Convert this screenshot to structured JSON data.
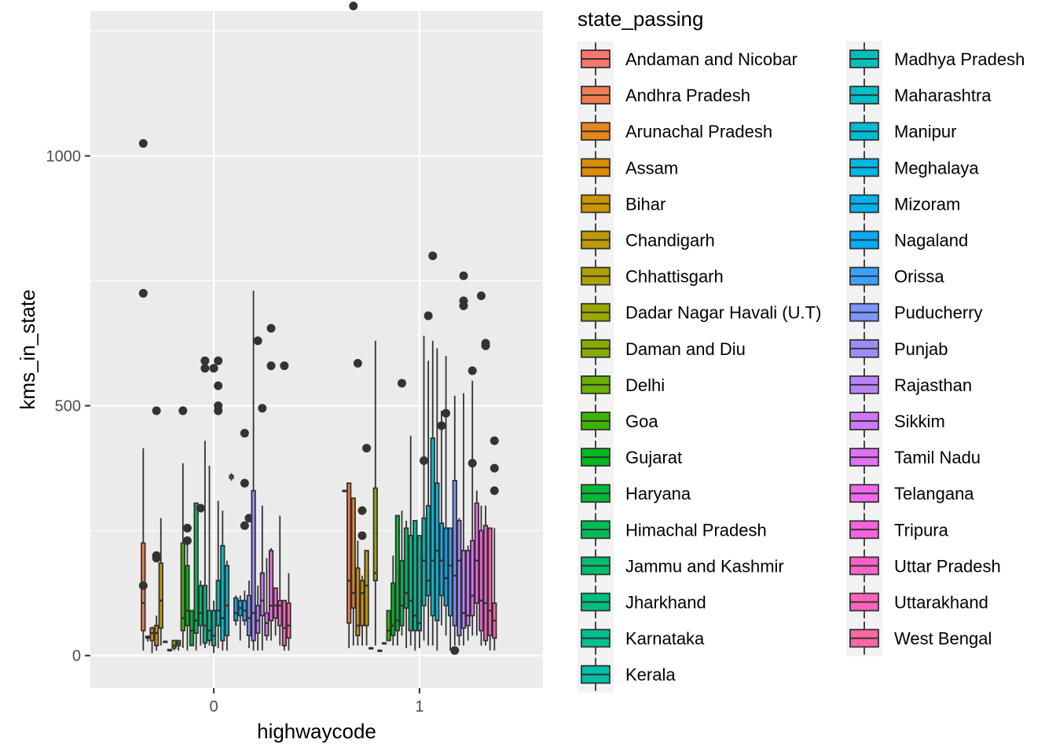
{
  "chart_data": {
    "type": "boxplot",
    "title": "",
    "xlabel": "highwaycode",
    "ylabel": "kms_in_state",
    "legend_title": "state_passing",
    "legend_position": "right",
    "grid": true,
    "categories": [
      "0",
      "1"
    ],
    "y_ticks": [
      0,
      500,
      1000
    ],
    "ylim": [
      -65,
      1290
    ],
    "series": [
      {
        "name": "Andaman and Nicobar",
        "color": "#F8766D",
        "stats": [
          null,
          {
            "min": 330,
            "q1": 330,
            "median": 330,
            "q3": 330,
            "max": 330,
            "outliers": []
          }
        ]
      },
      {
        "name": "Andhra Pradesh",
        "color": "#F17D51",
        "stats": [
          {
            "min": 10,
            "q1": 50,
            "median": 105,
            "q3": 225,
            "max": 415,
            "outliers": [
              1025,
              725,
              140
            ]
          },
          {
            "min": 15,
            "q1": 65,
            "median": 150,
            "q3": 345,
            "max": 345,
            "outliers": []
          }
        ]
      },
      {
        "name": "Arunachal Pradesh",
        "color": "#E7851E",
        "stats": [
          {
            "min": 28,
            "q1": 35,
            "median": 38,
            "q3": 38,
            "max": 40,
            "outliers": []
          },
          {
            "min": 20,
            "q1": 95,
            "median": 125,
            "q3": 315,
            "max": 315,
            "outliers": [
              1300
            ]
          }
        ]
      },
      {
        "name": "Assam",
        "color": "#DC8C00",
        "stats": [
          {
            "min": 5,
            "q1": 30,
            "median": 45,
            "q3": 55,
            "max": 58,
            "outliers": []
          },
          {
            "min": 20,
            "q1": 40,
            "median": 60,
            "q3": 175,
            "max": 230,
            "outliers": [
              585
            ]
          }
        ]
      },
      {
        "name": "Bihar",
        "color": "#CF9400",
        "stats": [
          {
            "min": 10,
            "q1": 20,
            "median": 45,
            "q3": 60,
            "max": 80,
            "outliers": [
              200,
              195,
              490
            ]
          },
          {
            "min": 20,
            "q1": 60,
            "median": 125,
            "q3": 150,
            "max": 160,
            "outliers": [
              290,
              240
            ]
          }
        ]
      },
      {
        "name": "Chandigarh",
        "color": "#C09B00",
        "stats": [
          {
            "min": 20,
            "q1": 55,
            "median": 110,
            "q3": 185,
            "max": 275,
            "outliers": []
          },
          {
            "min": 20,
            "q1": 60,
            "median": 140,
            "q3": 210,
            "max": 210,
            "outliers": [
              415
            ]
          }
        ]
      },
      {
        "name": "Chhattisgarh",
        "color": "#AFA100",
        "stats": [
          {
            "min": 26,
            "q1": 27,
            "median": 28,
            "q3": 28,
            "max": 30,
            "outliers": []
          },
          {
            "min": 15,
            "q1": 15,
            "median": 15,
            "q3": 15,
            "max": 15,
            "outliers": []
          }
        ]
      },
      {
        "name": "Dadar Nagar Havali (U.T)",
        "color": "#9CA700",
        "stats": [
          {
            "min": 8,
            "q1": 10,
            "median": 10,
            "q3": 12,
            "max": 12,
            "outliers": []
          },
          {
            "min": 20,
            "q1": 150,
            "median": 165,
            "q3": 335,
            "max": 630,
            "outliers": []
          }
        ]
      },
      {
        "name": "Daman and Diu",
        "color": "#85AD00",
        "stats": [
          {
            "min": 10,
            "q1": 15,
            "median": 20,
            "q3": 30,
            "max": 30,
            "outliers": []
          },
          {
            "min": 10,
            "q1": 10,
            "median": 10,
            "q3": 10,
            "max": 10,
            "outliers": []
          }
        ]
      },
      {
        "name": "Delhi",
        "color": "#68B100",
        "stats": [
          {
            "min": 10,
            "q1": 20,
            "median": 25,
            "q3": 30,
            "max": 30,
            "outliers": []
          },
          {
            "min": 25,
            "q1": 25,
            "median": 25,
            "q3": 25,
            "max": 25,
            "outliers": []
          }
        ]
      },
      {
        "name": "Goa",
        "color": "#3CB500",
        "stats": [
          {
            "min": 15,
            "q1": 50,
            "median": 75,
            "q3": 225,
            "max": 385,
            "outliers": [
              490
            ]
          },
          {
            "min": 30,
            "q1": 30,
            "median": 50,
            "q3": 90,
            "max": 90,
            "outliers": []
          }
        ]
      },
      {
        "name": "Gujarat",
        "color": "#00B81F",
        "stats": [
          {
            "min": 10,
            "q1": 60,
            "median": 90,
            "q3": 180,
            "max": 230,
            "outliers": [
              230,
              255
            ]
          },
          {
            "min": 20,
            "q1": 40,
            "median": 60,
            "q3": 145,
            "max": 200,
            "outliers": []
          }
        ]
      },
      {
        "name": "Haryana",
        "color": "#00BA38",
        "stats": [
          {
            "min": 20,
            "q1": 20,
            "median": 50,
            "q3": 90,
            "max": 90,
            "outliers": []
          },
          {
            "min": 20,
            "q1": 50,
            "median": 70,
            "q3": 280,
            "max": 280,
            "outliers": []
          }
        ]
      },
      {
        "name": "Himachal Pradesh",
        "color": "#00BC56",
        "stats": [
          {
            "min": 10,
            "q1": 45,
            "median": 70,
            "q3": 305,
            "max": 305,
            "outliers": []
          },
          {
            "min": 40,
            "q1": 60,
            "median": 100,
            "q3": 190,
            "max": 290,
            "outliers": [
              545
            ]
          }
        ]
      },
      {
        "name": "Jammu and Kashmir",
        "color": "#00BE6C",
        "stats": [
          {
            "min": 20,
            "q1": 60,
            "median": 85,
            "q3": 140,
            "max": 150,
            "outliers": [
              295
            ]
          },
          {
            "min": 15,
            "q1": 95,
            "median": 125,
            "q3": 255,
            "max": 270,
            "outliers": []
          }
        ]
      },
      {
        "name": "Jharkhand",
        "color": "#00BF80",
        "stats": [
          {
            "min": 15,
            "q1": 25,
            "median": 60,
            "q3": 140,
            "max": 430,
            "outliers": [
              590,
              575
            ]
          },
          {
            "min": 20,
            "q1": 50,
            "median": 110,
            "q3": 240,
            "max": 440,
            "outliers": []
          }
        ]
      },
      {
        "name": "Karnataka",
        "color": "#00C094",
        "stats": [
          {
            "min": 20,
            "q1": 30,
            "median": 50,
            "q3": 90,
            "max": 380,
            "outliers": []
          },
          {
            "min": 10,
            "q1": 50,
            "median": 80,
            "q3": 270,
            "max": 270,
            "outliers": []
          }
        ]
      },
      {
        "name": "Kerala",
        "color": "#00C0A7",
        "stats": [
          {
            "min": 5,
            "q1": 20,
            "median": 40,
            "q3": 90,
            "max": 110,
            "outliers": [
              575
            ]
          },
          {
            "min": 15,
            "q1": 50,
            "median": 65,
            "q3": 240,
            "max": 240,
            "outliers": []
          }
        ]
      },
      {
        "name": "Madhya Pradesh",
        "color": "#00C0B8",
        "stats": [
          {
            "min": 15,
            "q1": 60,
            "median": 90,
            "q3": 150,
            "max": 310,
            "outliers": [
              590,
              540,
              500,
              490
            ]
          },
          {
            "min": 30,
            "q1": 100,
            "median": 190,
            "q3": 275,
            "max": 640,
            "outliers": [
              390
            ]
          }
        ]
      },
      {
        "name": "Maharashtra",
        "color": "#00BFC7",
        "stats": [
          {
            "min": 10,
            "q1": 30,
            "median": 75,
            "q3": 220,
            "max": 290,
            "outliers": []
          },
          {
            "min": 20,
            "q1": 120,
            "median": 150,
            "q3": 300,
            "max": 590,
            "outliers": [
              680
            ]
          }
        ]
      },
      {
        "name": "Manipur",
        "color": "#00BCD6",
        "stats": [
          {
            "min": 10,
            "q1": 40,
            "median": 100,
            "q3": 180,
            "max": 190,
            "outliers": []
          },
          {
            "min": 20,
            "q1": 80,
            "median": 190,
            "q3": 435,
            "max": 630,
            "outliers": [
              800
            ]
          }
        ]
      },
      {
        "name": "Meghalaya",
        "color": "#00B8E3",
        "stats": [
          {
            "min": 350,
            "q1": 355,
            "median": 360,
            "q3": 360,
            "max": 365,
            "outliers": []
          },
          {
            "min": 10,
            "q1": 70,
            "median": 210,
            "q3": 345,
            "max": 615,
            "outliers": []
          }
        ]
      },
      {
        "name": "Mizoram",
        "color": "#00B3F0",
        "stats": [
          {
            "min": 60,
            "q1": 70,
            "median": 85,
            "q3": 115,
            "max": 120,
            "outliers": []
          },
          {
            "min": 60,
            "q1": 120,
            "median": 190,
            "q3": 265,
            "max": 490,
            "outliers": [
              460
            ]
          }
        ]
      },
      {
        "name": "Nagaland",
        "color": "#00ACFC",
        "stats": [
          {
            "min": 30,
            "q1": 80,
            "median": 95,
            "q3": 110,
            "max": 120,
            "outliers": []
          },
          {
            "min": 40,
            "q1": 100,
            "median": 155,
            "q3": 255,
            "max": 600,
            "outliers": [
              485
            ]
          }
        ]
      },
      {
        "name": "Orissa",
        "color": "#39A2FF",
        "stats": [
          {
            "min": 60,
            "q1": 70,
            "median": 90,
            "q3": 110,
            "max": 130,
            "outliers": [
              445,
              345,
              260
            ]
          },
          {
            "min": 10,
            "q1": 80,
            "median": 180,
            "q3": 255,
            "max": 255,
            "outliers": []
          }
        ]
      },
      {
        "name": "Puducherry",
        "color": "#7D96FF",
        "stats": [
          {
            "min": 15,
            "q1": 40,
            "median": 75,
            "q3": 120,
            "max": 150,
            "outliers": [
              275
            ]
          },
          {
            "min": 20,
            "q1": 60,
            "median": 160,
            "q3": 350,
            "max": 520,
            "outliers": [
              10
            ]
          }
        ]
      },
      {
        "name": "Punjab",
        "color": "#9E8CFF",
        "stats": [
          {
            "min": 10,
            "q1": 30,
            "median": 85,
            "q3": 330,
            "max": 730,
            "outliers": []
          },
          {
            "min": 20,
            "q1": 40,
            "median": 190,
            "q3": 270,
            "max": 275,
            "outliers": []
          }
        ]
      },
      {
        "name": "Rajasthan",
        "color": "#B983FF",
        "stats": [
          {
            "min": 10,
            "q1": 45,
            "median": 70,
            "q3": 100,
            "max": 140,
            "outliers": [
              630
            ]
          },
          {
            "min": 20,
            "q1": 55,
            "median": 85,
            "q3": 210,
            "max": 525,
            "outliers": [
              760,
              710,
              700
            ]
          }
        ]
      },
      {
        "name": "Sikkim",
        "color": "#CF78FF",
        "stats": [
          {
            "min": 10,
            "q1": 80,
            "median": 110,
            "q3": 165,
            "max": 300,
            "outliers": [
              495
            ]
          },
          {
            "min": 30,
            "q1": 60,
            "median": 80,
            "q3": 210,
            "max": 220,
            "outliers": []
          }
        ]
      },
      {
        "name": "Tamil Nadu",
        "color": "#E16FFA",
        "stats": [
          {
            "min": 30,
            "q1": 40,
            "median": 65,
            "q3": 85,
            "max": 195,
            "outliers": []
          },
          {
            "min": 40,
            "q1": 80,
            "median": 120,
            "q3": 230,
            "max": 550,
            "outliers": [
              570,
              385
            ]
          }
        ]
      },
      {
        "name": "Telangana",
        "color": "#EF67EB",
        "stats": [
          {
            "min": 30,
            "q1": 70,
            "median": 100,
            "q3": 210,
            "max": 215,
            "outliers": [
              655,
              580
            ]
          },
          {
            "min": 40,
            "q1": 105,
            "median": 190,
            "q3": 305,
            "max": 330,
            "outliers": []
          }
        ]
      },
      {
        "name": "Tripura",
        "color": "#F962DD",
        "stats": [
          {
            "min": 40,
            "q1": 75,
            "median": 100,
            "q3": 135,
            "max": 135,
            "outliers": []
          },
          {
            "min": 20,
            "q1": 50,
            "median": 110,
            "q3": 250,
            "max": 300,
            "outliers": [
              720
            ]
          }
        ]
      },
      {
        "name": "Uttar Pradesh",
        "color": "#FF61CC",
        "stats": [
          {
            "min": 20,
            "q1": 60,
            "median": 100,
            "q3": 110,
            "max": 280,
            "outliers": []
          },
          {
            "min": 20,
            "q1": 30,
            "median": 105,
            "q3": 260,
            "max": 300,
            "outliers": [
              625,
              620
            ]
          }
        ]
      },
      {
        "name": "Uttarakhand",
        "color": "#FF63B9",
        "stats": [
          {
            "min": 10,
            "q1": 20,
            "median": 55,
            "q3": 110,
            "max": 110,
            "outliers": [
              580
            ]
          },
          {
            "min": 10,
            "q1": 40,
            "median": 90,
            "q3": 255,
            "max": 255,
            "outliers": []
          }
        ]
      },
      {
        "name": "West Bengal",
        "color": "#FF67A4",
        "stats": [
          {
            "min": 10,
            "q1": 35,
            "median": 60,
            "q3": 105,
            "max": 165,
            "outliers": []
          },
          {
            "min": 10,
            "q1": 35,
            "median": 70,
            "q3": 105,
            "max": 255,
            "outliers": [
              430,
              375,
              330
            ]
          }
        ]
      }
    ]
  }
}
